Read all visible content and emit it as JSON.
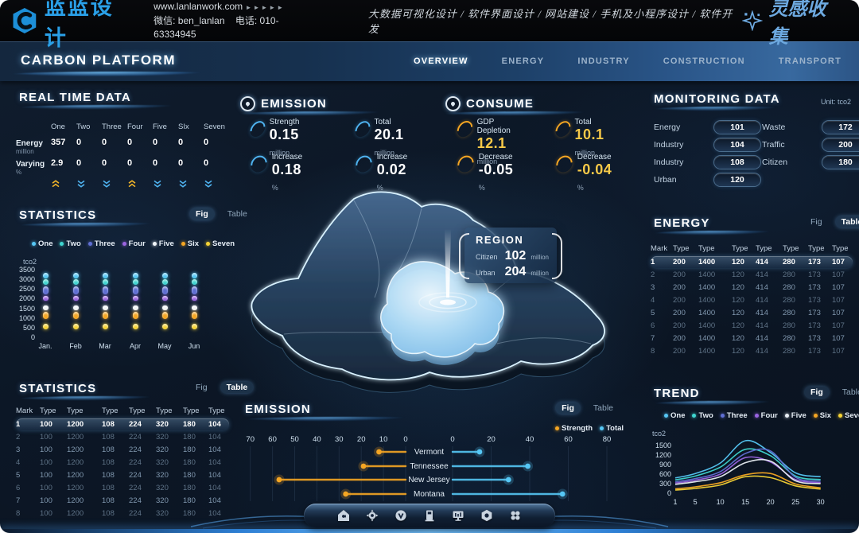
{
  "top_bar": {
    "logo_text": "蓝蓝设计",
    "website": "www.lanlanwork.com",
    "arrows": "►►►►►",
    "wechat": "微信: ben_lanlan",
    "phone": "电话: 010-63334945",
    "services": "大数据可视化设计 / 软件界面设计 / 网站建设 / 手机及小程序设计 / 软件开发",
    "collect": "灵感收集"
  },
  "header": {
    "title": "CARBON PLATFORM",
    "nav": [
      {
        "label": "OVERVIEW",
        "active": true
      },
      {
        "label": "ENERGY",
        "active": false
      },
      {
        "label": "INDUSTRY",
        "active": false
      },
      {
        "label": "CONSTRUCTION",
        "active": false
      },
      {
        "label": "TRANSPORT",
        "active": false
      }
    ]
  },
  "real_time_data": {
    "title": "REAL TIME DATA",
    "columns": [
      "One",
      "Two",
      "Three",
      "Four",
      "Five",
      "SIx",
      "Seven"
    ],
    "rows": [
      {
        "label": "Energy",
        "unit": "million",
        "values": [
          "357",
          "0",
          "0",
          "0",
          "0",
          "0",
          "0"
        ]
      },
      {
        "label": "Varying",
        "unit": "%",
        "values": [
          "2.9",
          "0",
          "0",
          "0",
          "0",
          "0",
          "0"
        ]
      }
    ],
    "trends": [
      "up",
      "down",
      "down",
      "up",
      "down",
      "down",
      "down"
    ],
    "trend_colors": {
      "up": "#f0b429",
      "down": "#4fb3f0"
    }
  },
  "statistics_fig": {
    "title": "STATISTICS",
    "toggle": {
      "fig": "Fig",
      "table": "Table",
      "active": "fig"
    },
    "unit": "tco2",
    "chart_data": {
      "type": "stacked-dot-columns",
      "categories": [
        "Jan.",
        "Feb",
        "Mar",
        "Apr",
        "May",
        "Jun"
      ],
      "y_ticks": [
        3500,
        3000,
        2500,
        2000,
        1500,
        1000,
        500,
        0
      ],
      "series": [
        {
          "name": "One",
          "color": "#56c7f5",
          "range": [
            3050,
            3350
          ]
        },
        {
          "name": "Two",
          "color": "#3fd6d0",
          "range": [
            2700,
            3000
          ]
        },
        {
          "name": "Three",
          "color": "#5f6fd3",
          "range": [
            2200,
            2650
          ]
        },
        {
          "name": "Four",
          "color": "#9a64e0",
          "range": [
            1900,
            2150
          ]
        },
        {
          "name": "Five",
          "color": "#f2f6fa",
          "range": [
            1400,
            1650
          ]
        },
        {
          "name": "Six",
          "color": "#f5a623",
          "range": [
            950,
            1300
          ]
        },
        {
          "name": "Seven",
          "color": "#f6d335",
          "range": [
            430,
            700
          ]
        }
      ]
    }
  },
  "statistics_table": {
    "title": "STATISTICS",
    "toggle": {
      "fig": "Fig",
      "table": "Table",
      "active": "table"
    },
    "columns": [
      "Mark",
      "Type",
      "Type",
      "Type",
      "Type",
      "Type",
      "Type",
      "Type"
    ],
    "rows": [
      [
        "1",
        "100",
        "1200",
        "108",
        "224",
        "320",
        "180",
        "104"
      ],
      [
        "2",
        "100",
        "1200",
        "108",
        "224",
        "320",
        "180",
        "104"
      ],
      [
        "3",
        "100",
        "1200",
        "108",
        "224",
        "320",
        "180",
        "104"
      ],
      [
        "4",
        "100",
        "1200",
        "108",
        "224",
        "320",
        "180",
        "104"
      ],
      [
        "5",
        "100",
        "1200",
        "108",
        "224",
        "320",
        "180",
        "104"
      ],
      [
        "6",
        "100",
        "1200",
        "108",
        "224",
        "320",
        "180",
        "104"
      ],
      [
        "7",
        "100",
        "1200",
        "108",
        "224",
        "320",
        "180",
        "104"
      ],
      [
        "8",
        "100",
        "1200",
        "108",
        "224",
        "320",
        "180",
        "104"
      ]
    ]
  },
  "emission_panel": {
    "title": "EMISSION",
    "metrics": [
      {
        "label": "Strength",
        "value": "0.15",
        "unit": "million",
        "arc_color": "#4fb3f0",
        "value_color": "#ffffff"
      },
      {
        "label": "Total",
        "value": "20.1",
        "unit": "million",
        "arc_color": "#4fb3f0",
        "value_color": "#ffffff"
      },
      {
        "label": "Increase",
        "value": "0.18",
        "unit": "%",
        "arc_color": "#4fb3f0",
        "value_color": "#ffffff"
      },
      {
        "label": "Increase",
        "value": "0.02",
        "unit": "%",
        "arc_color": "#4fb3f0",
        "value_color": "#ffffff"
      }
    ]
  },
  "consume_panel": {
    "title": "CONSUME",
    "metrics": [
      {
        "label": "GDP Depletion",
        "value": "12.1",
        "unit": "million",
        "arc_color": "#f5a623",
        "value_color": "#f7c948"
      },
      {
        "label": "Total",
        "value": "10.1",
        "unit": "million",
        "arc_color": "#f5a623",
        "value_color": "#f7c948"
      },
      {
        "label": "Decrease",
        "value": "-0.05",
        "unit": "%",
        "arc_color": "#f5a623",
        "value_color": "#ffffff"
      },
      {
        "label": "Decrease",
        "value": "-0.04",
        "unit": "%",
        "arc_color": "#f5a623",
        "value_color": "#f7c948"
      }
    ]
  },
  "map": {
    "tooltip": {
      "title": "REGION",
      "rows": [
        {
          "label": "Citizen",
          "value": "102",
          "unit": "million"
        },
        {
          "label": "Urban",
          "value": "204",
          "unit": "million"
        }
      ]
    }
  },
  "monitoring": {
    "title": "MONITORING DATA",
    "unit_label": "Unit: tco2",
    "left": [
      {
        "label": "Energy",
        "value": "101"
      },
      {
        "label": "Industry",
        "value": "104"
      },
      {
        "label": "Industry",
        "value": "108"
      },
      {
        "label": "Urban",
        "value": "120"
      }
    ],
    "right": [
      {
        "label": "Waste",
        "value": "172"
      },
      {
        "label": "Traffic",
        "value": "200"
      },
      {
        "label": "Citizen",
        "value": "180"
      }
    ]
  },
  "energy_table": {
    "title": "ENERGY",
    "toggle": {
      "fig": "Fig",
      "table": "Table",
      "active": "table"
    },
    "columns": [
      "Mark",
      "Type",
      "Type",
      "Type",
      "Type",
      "Type",
      "Type",
      "Type"
    ],
    "rows": [
      [
        "1",
        "200",
        "1400",
        "120",
        "414",
        "280",
        "173",
        "107"
      ],
      [
        "2",
        "200",
        "1400",
        "120",
        "414",
        "280",
        "173",
        "107"
      ],
      [
        "3",
        "200",
        "1400",
        "120",
        "414",
        "280",
        "173",
        "107"
      ],
      [
        "4",
        "200",
        "1400",
        "120",
        "414",
        "280",
        "173",
        "107"
      ],
      [
        "5",
        "200",
        "1400",
        "120",
        "414",
        "280",
        "173",
        "107"
      ],
      [
        "6",
        "200",
        "1400",
        "120",
        "414",
        "280",
        "173",
        "107"
      ],
      [
        "7",
        "200",
        "1400",
        "120",
        "414",
        "280",
        "173",
        "107"
      ],
      [
        "8",
        "200",
        "1400",
        "120",
        "414",
        "280",
        "173",
        "107"
      ]
    ]
  },
  "trend": {
    "title": "TREND",
    "toggle": {
      "fig": "Fig",
      "table": "Table",
      "active": "fig"
    },
    "unit": "tco2",
    "chart_data": {
      "type": "line",
      "x": [
        1,
        5,
        10,
        15,
        20,
        25,
        30
      ],
      "x_ticks": [
        1,
        5,
        10,
        15,
        20,
        25,
        30
      ],
      "y_ticks": [
        1500,
        1200,
        900,
        600,
        300,
        0
      ],
      "series": [
        {
          "name": "One",
          "color": "#56c7f5",
          "values": [
            480,
            620,
            950,
            1650,
            1280,
            640,
            520
          ]
        },
        {
          "name": "Two",
          "color": "#3fd6d0",
          "values": [
            420,
            540,
            820,
            1380,
            1180,
            540,
            430
          ]
        },
        {
          "name": "Three",
          "color": "#5f6fd3",
          "values": [
            360,
            460,
            680,
            1250,
            1330,
            500,
            380
          ]
        },
        {
          "name": "Four",
          "color": "#9a64e0",
          "values": [
            320,
            410,
            600,
            1120,
            980,
            430,
            330
          ]
        },
        {
          "name": "Five",
          "color": "#e9eef4",
          "values": [
            280,
            360,
            520,
            960,
            1010,
            390,
            300
          ]
        },
        {
          "name": "Six",
          "color": "#f5a623",
          "values": [
            140,
            200,
            330,
            580,
            620,
            290,
            170
          ]
        },
        {
          "name": "Seven",
          "color": "#f6d335",
          "values": [
            100,
            150,
            260,
            520,
            490,
            230,
            130
          ]
        }
      ]
    }
  },
  "emission_chart": {
    "title": "EMISSION",
    "toggle": {
      "fig": "Fig",
      "table": "Table",
      "active": "fig"
    },
    "chart_data": {
      "type": "tornado",
      "categories": [
        "Vermont",
        "Tennessee",
        "New Jersey",
        "Montana"
      ],
      "left_axis_ticks": [
        70,
        60,
        50,
        40,
        30,
        20,
        10,
        0
      ],
      "right_axis_ticks": [
        0,
        20,
        40,
        60,
        80
      ],
      "series": [
        {
          "name": "Strength",
          "color": "#f5a623",
          "values": [
            12,
            19,
            57,
            27
          ]
        },
        {
          "name": "Total",
          "color": "#56c7f5",
          "values": [
            14,
            39,
            29,
            57
          ]
        }
      ]
    }
  },
  "dock": {
    "icons": [
      "home",
      "gear",
      "valve",
      "fuel",
      "monitor",
      "nut",
      "apps"
    ]
  }
}
